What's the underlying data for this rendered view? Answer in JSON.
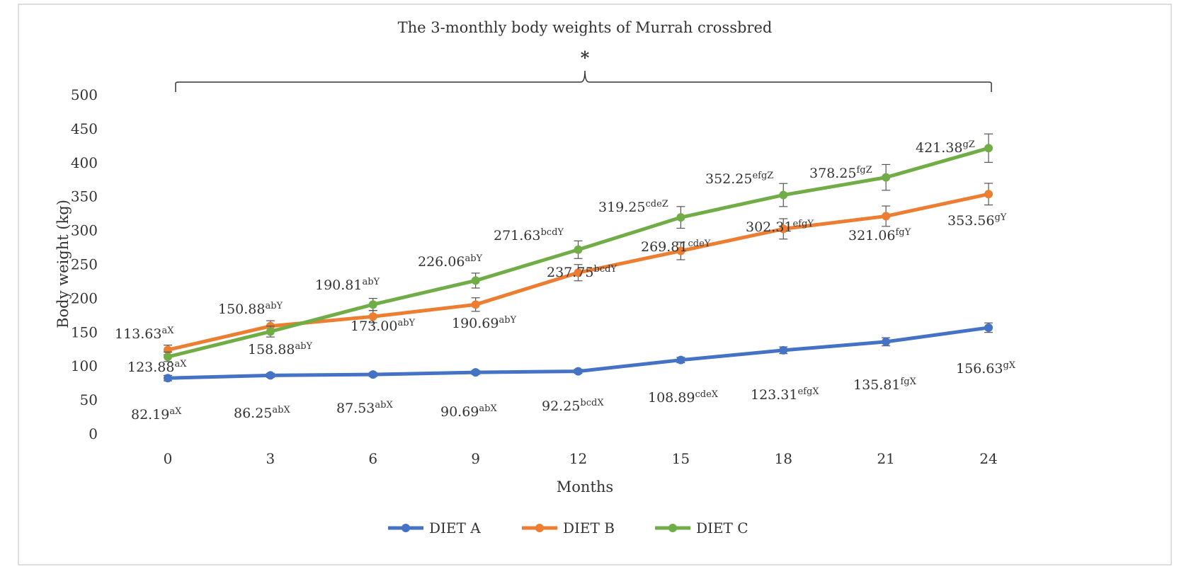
{
  "chart_data": {
    "type": "line",
    "title": "The 3-monthly body weights of Murrah crossbred",
    "significance_marker": "*",
    "xlabel": "Months",
    "ylabel": "Body weight (kg)",
    "x": [
      0,
      3,
      6,
      9,
      12,
      15,
      18,
      21,
      24
    ],
    "x_tick_labels": [
      "0",
      "3",
      "6",
      "9",
      "12",
      "15",
      "18",
      "21",
      "24"
    ],
    "ylim": [
      0,
      500
    ],
    "y_tick_labels": [
      "0",
      "50",
      "100",
      "150",
      "200",
      "250",
      "300",
      "350",
      "400",
      "450",
      "500"
    ],
    "grid": false,
    "legend_position": "bottom",
    "series": [
      {
        "name": "DIET A",
        "color": "#4472C4",
        "values": [
          82.19,
          86.25,
          87.53,
          90.69,
          92.25,
          108.89,
          123.31,
          135.81,
          156.63
        ],
        "errors": [
          4,
          3,
          3,
          3,
          3,
          4,
          5,
          6,
          7
        ],
        "labels": [
          "82.19",
          "86.25",
          "87.53",
          "90.69",
          "92.25",
          "108.89",
          "123.31",
          "135.81",
          "156.63"
        ],
        "superscripts": [
          "aX",
          "abX",
          "abX",
          "abX",
          "bcdX",
          "cdeX",
          "efgX",
          "fgX",
          "gX"
        ]
      },
      {
        "name": "DIET B",
        "color": "#ED7D31",
        "values": [
          123.88,
          158.88,
          173.0,
          190.69,
          237.75,
          269.81,
          302.31,
          321.06,
          353.56
        ],
        "errors": [
          7,
          8,
          9,
          10,
          12,
          13,
          15,
          15,
          16
        ],
        "labels": [
          "123.88",
          "158.88",
          "173.00",
          "190.69",
          "237.75",
          "269.81",
          "302.31",
          "321.06",
          "353.56"
        ],
        "superscripts": [
          "aX",
          "abY",
          "abY",
          "abY",
          "bcdY",
          "cdeY",
          "efgY",
          "fgY",
          "gY"
        ]
      },
      {
        "name": "DIET C",
        "color": "#70AD47",
        "values": [
          113.63,
          150.88,
          190.81,
          226.06,
          271.63,
          319.25,
          352.25,
          378.25,
          421.38
        ],
        "errors": [
          7,
          8,
          9,
          11,
          13,
          16,
          17,
          19,
          21
        ],
        "labels": [
          "113.63",
          "150.88",
          "190.81",
          "226.06",
          "271.63",
          "319.25",
          "352.25",
          "378.25",
          "421.38"
        ],
        "superscripts": [
          "aX",
          "abY",
          "abY",
          "abY",
          "bcdY",
          "cdeZ",
          "efgZ",
          "fgZ",
          "gZ"
        ]
      }
    ]
  }
}
